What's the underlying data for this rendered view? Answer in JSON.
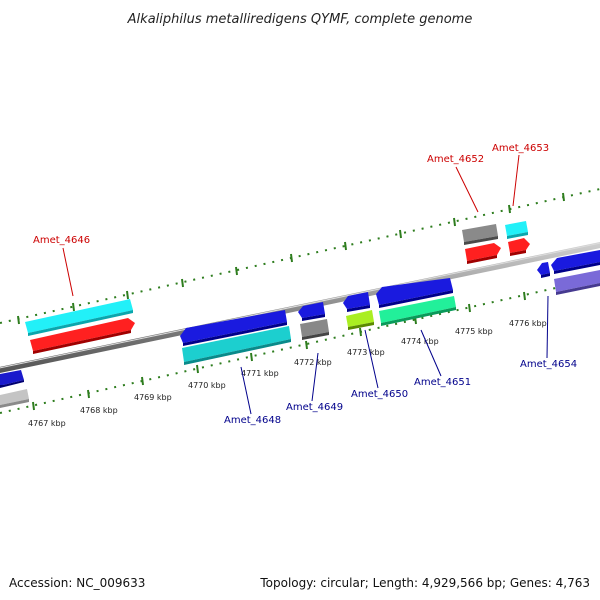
{
  "title": "Alkaliphilus metalliredigens QYMF, complete genome",
  "footer": {
    "accession": "Accession: NC_009633",
    "topology": "Topology: circular; Length: 4,929,566 bp; Genes: 4,763"
  },
  "colors": {
    "forward_label": "#cc0000",
    "reverse_label": "#00008b",
    "backbone": "#808080",
    "tick": "#2e7d1e"
  },
  "kbp_ticks": [
    "4767 kbp",
    "4768 kbp",
    "4769 kbp",
    "4770 kbp",
    "4771 kbp",
    "4772 kbp",
    "4773 kbp",
    "4774 kbp",
    "4775 kbp",
    "4776 kbp"
  ],
  "labeled_genes": {
    "forward": [
      "Amet_4646",
      "Amet_4652",
      "Amet_4653"
    ],
    "reverse": [
      "Amet_4648",
      "Amet_4649",
      "Amet_4650",
      "Amet_4651",
      "Amet_4654"
    ]
  }
}
